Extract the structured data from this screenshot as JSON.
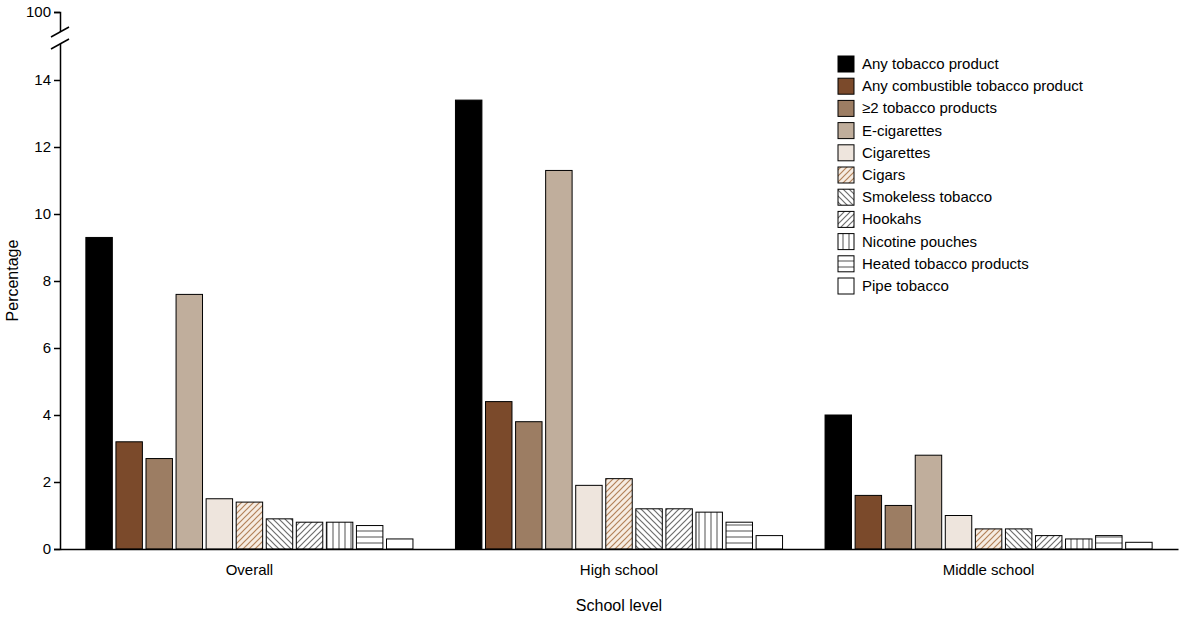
{
  "chart_data": {
    "type": "bar",
    "x_label": "School level",
    "y_label": "Percentage",
    "categories": [
      "Overall",
      "High school",
      "Middle school"
    ],
    "series": [
      {
        "name": "Any tobacco product",
        "color": "#000000",
        "values": [
          9.3,
          13.4,
          4.0
        ]
      },
      {
        "name": "Any combustible tobacco product",
        "color": "#7b4a2b",
        "values": [
          3.2,
          4.4,
          1.6
        ]
      },
      {
        "name": "≥2 tobacco products",
        "color": "#9c7d63",
        "values": [
          2.7,
          3.8,
          1.3
        ]
      },
      {
        "name": "E-cigarettes",
        "color": "#c0ae9c",
        "values": [
          7.6,
          11.3,
          2.8
        ]
      },
      {
        "name": "Cigarettes",
        "color": "#eee5dd",
        "values": [
          1.5,
          1.9,
          1.0
        ]
      },
      {
        "name": "Cigars",
        "color": "#b3825a",
        "values": [
          1.4,
          2.1,
          0.6
        ]
      },
      {
        "name": "Smokeless tobacco",
        "color": "#6e6e6e",
        "values": [
          0.9,
          1.2,
          0.6
        ]
      },
      {
        "name": "Hookahs",
        "color": "#6e6e6e",
        "values": [
          0.8,
          1.2,
          0.4
        ]
      },
      {
        "name": "Nicotine pouches",
        "color": "#6e6e6e",
        "values": [
          0.8,
          1.1,
          0.3
        ]
      },
      {
        "name": "Heated tobacco products",
        "color": "#6e6e6e",
        "values": [
          0.7,
          0.8,
          0.4
        ]
      },
      {
        "name": "Pipe tobacco",
        "color": "#ffffff",
        "values": [
          0.3,
          0.4,
          0.2
        ]
      }
    ],
    "ylim": [
      0,
      100
    ],
    "yticks": [
      0,
      2,
      4,
      6,
      8,
      10,
      12,
      14,
      100
    ],
    "grid": false,
    "legend": "top-right"
  }
}
